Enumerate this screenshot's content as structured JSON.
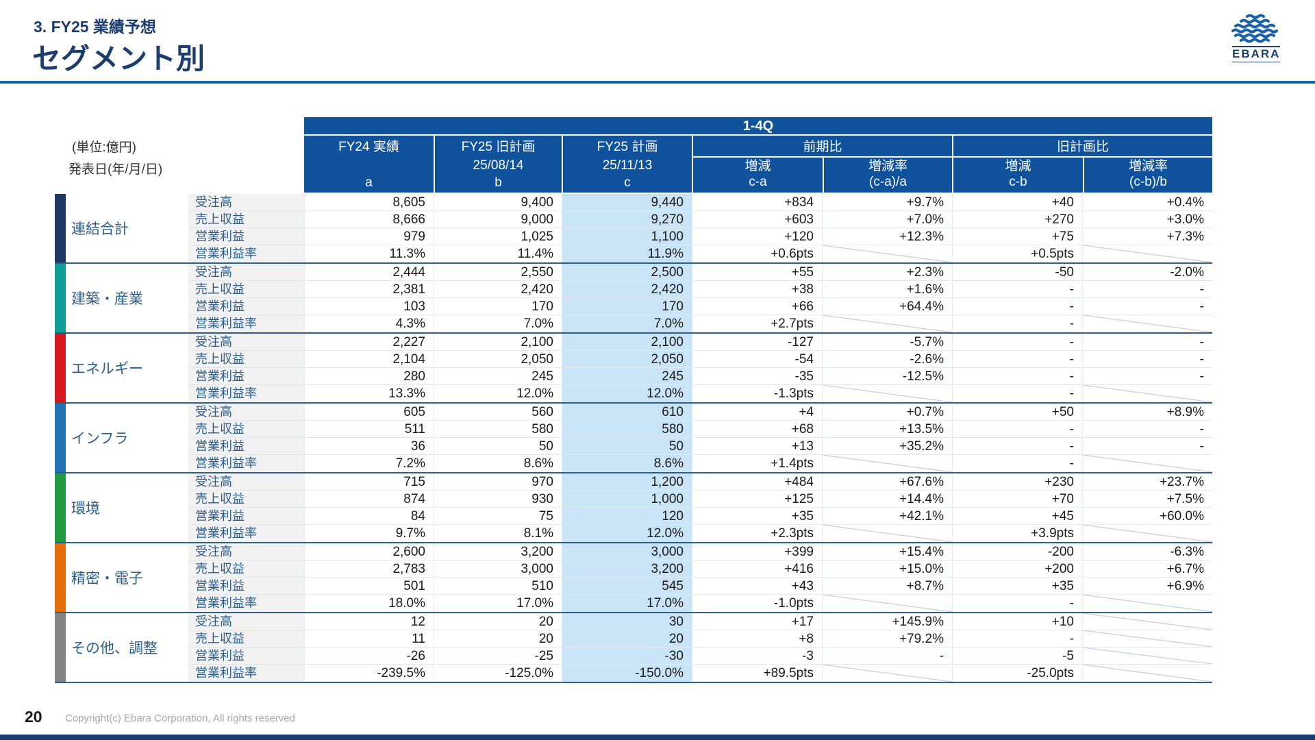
{
  "slide": {
    "kicker": "3. FY25 業績予想",
    "title": "セグメント別",
    "unit_note": "(単位:億円)",
    "date_note": "発表日(年/月/日)",
    "page_number": "20",
    "copyright": "Copyright(c) Ebara Corporation, All rights reserved",
    "logo_text": "EBARA"
  },
  "colors": {
    "header_navy": "#10529c",
    "title_navy": "#1c3e6e",
    "rule_blue": "#1761ab",
    "plan_column_bg": "#c9e4f6",
    "label_column_bg": "#f2f2f2",
    "block_separator": "#2c6087",
    "slash_line": "#c9cdd2"
  },
  "table": {
    "period_header": "1-4Q",
    "columns": [
      {
        "title": "FY24 実績",
        "date": "",
        "key": "a"
      },
      {
        "title": "FY25 旧計画",
        "date": "25/08/14",
        "key": "b"
      },
      {
        "title": "FY25 計画",
        "date": "25/11/13",
        "key": "c"
      }
    ],
    "groups": [
      {
        "title": "前期比",
        "subs": [
          {
            "label": "増減",
            "key": "c-a"
          },
          {
            "label": "増減率",
            "key": "(c-a)/a"
          }
        ]
      },
      {
        "title": "旧計画比",
        "subs": [
          {
            "label": "増減",
            "key": "c-b"
          },
          {
            "label": "増減率",
            "key": "(c-b)/b"
          }
        ]
      }
    ],
    "metric_labels": [
      "受注高",
      "売上収益",
      "営業利益",
      "営業利益率"
    ],
    "segments": [
      {
        "name": "連結合計",
        "color": "#1f3864",
        "rows": [
          [
            "8,605",
            "9,400",
            "9,440",
            "+834",
            "+9.7%",
            "+40",
            "+0.4%"
          ],
          [
            "8,666",
            "9,000",
            "9,270",
            "+603",
            "+7.0%",
            "+270",
            "+3.0%"
          ],
          [
            "979",
            "1,025",
            "1,100",
            "+120",
            "+12.3%",
            "+75",
            "+7.3%"
          ],
          [
            "11.3%",
            "11.4%",
            "11.9%",
            "+0.6pts",
            null,
            "+0.5pts",
            null
          ]
        ]
      },
      {
        "name": "建築・産業",
        "color": "#0f9e96",
        "rows": [
          [
            "2,444",
            "2,550",
            "2,500",
            "+55",
            "+2.3%",
            "-50",
            "-2.0%"
          ],
          [
            "2,381",
            "2,420",
            "2,420",
            "+38",
            "+1.6%",
            "-",
            "-"
          ],
          [
            "103",
            "170",
            "170",
            "+66",
            "+64.4%",
            "-",
            "-"
          ],
          [
            "4.3%",
            "7.0%",
            "7.0%",
            "+2.7pts",
            null,
            "-",
            null
          ]
        ]
      },
      {
        "name": "エネルギー",
        "color": "#d41920",
        "rows": [
          [
            "2,227",
            "2,100",
            "2,100",
            "-127",
            "-5.7%",
            "-",
            "-"
          ],
          [
            "2,104",
            "2,050",
            "2,050",
            "-54",
            "-2.6%",
            "-",
            "-"
          ],
          [
            "280",
            "245",
            "245",
            "-35",
            "-12.5%",
            "-",
            "-"
          ],
          [
            "13.3%",
            "12.0%",
            "12.0%",
            "-1.3pts",
            null,
            "-",
            null
          ]
        ]
      },
      {
        "name": "インフラ",
        "color": "#2272b8",
        "rows": [
          [
            "605",
            "560",
            "610",
            "+4",
            "+0.7%",
            "+50",
            "+8.9%"
          ],
          [
            "511",
            "580",
            "580",
            "+68",
            "+13.5%",
            "-",
            "-"
          ],
          [
            "36",
            "50",
            "50",
            "+13",
            "+35.2%",
            "-",
            "-"
          ],
          [
            "7.2%",
            "8.6%",
            "8.6%",
            "+1.4pts",
            null,
            "-",
            null
          ]
        ]
      },
      {
        "name": "環境",
        "color": "#1f9d40",
        "rows": [
          [
            "715",
            "970",
            "1,200",
            "+484",
            "+67.6%",
            "+230",
            "+23.7%"
          ],
          [
            "874",
            "930",
            "1,000",
            "+125",
            "+14.4%",
            "+70",
            "+7.5%"
          ],
          [
            "84",
            "75",
            "120",
            "+35",
            "+42.1%",
            "+45",
            "+60.0%"
          ],
          [
            "9.7%",
            "8.1%",
            "12.0%",
            "+2.3pts",
            null,
            "+3.9pts",
            null
          ]
        ]
      },
      {
        "name": "精密・電子",
        "color": "#e66c0a",
        "rows": [
          [
            "2,600",
            "3,200",
            "3,000",
            "+399",
            "+15.4%",
            "-200",
            "-6.3%"
          ],
          [
            "2,783",
            "3,000",
            "3,200",
            "+416",
            "+15.0%",
            "+200",
            "+6.7%"
          ],
          [
            "501",
            "510",
            "545",
            "+43",
            "+8.7%",
            "+35",
            "+6.9%"
          ],
          [
            "18.0%",
            "17.0%",
            "17.0%",
            "-1.0pts",
            null,
            "-",
            null
          ]
        ]
      },
      {
        "name": "その他、調整",
        "color": "#838383",
        "rows": [
          [
            "12",
            "20",
            "30",
            "+17",
            "+145.9%",
            "+10",
            null
          ],
          [
            "11",
            "20",
            "20",
            "+8",
            "+79.2%",
            "-",
            null
          ],
          [
            "-26",
            "-25",
            "-30",
            "-3",
            "-",
            "-5",
            null
          ],
          [
            "-239.5%",
            "-125.0%",
            "-150.0%",
            "+89.5pts",
            null,
            "-25.0pts",
            null
          ]
        ]
      }
    ]
  }
}
